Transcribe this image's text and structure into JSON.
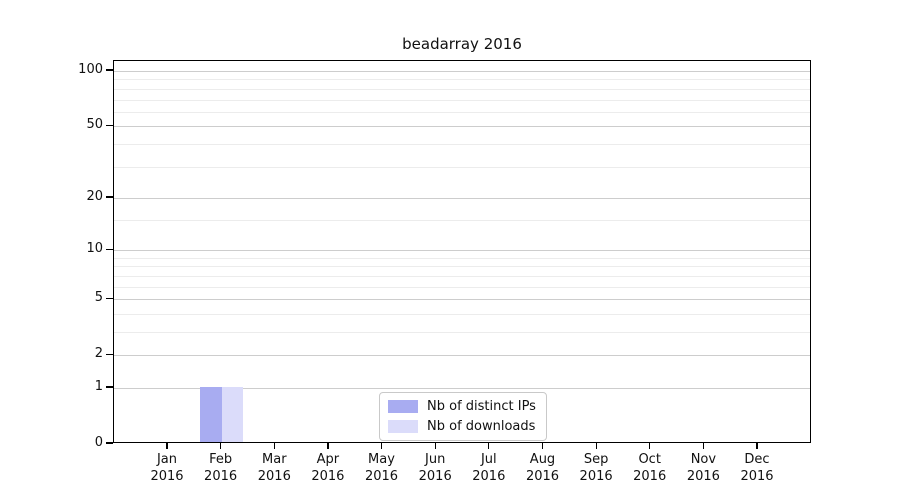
{
  "chart_data": {
    "type": "bar",
    "title": "beadarray 2016",
    "x_axis": {
      "categories": [
        "Jan",
        "Feb",
        "Mar",
        "Apr",
        "May",
        "Jun",
        "Jul",
        "Aug",
        "Sep",
        "Oct",
        "Nov",
        "Dec"
      ],
      "year_label": "2016"
    },
    "y_axis": {
      "scale": "log10(value+1)",
      "tick_labels": [
        100,
        50,
        20,
        10,
        5,
        2,
        1,
        0
      ],
      "minor_gridline_values": [
        3,
        4,
        6,
        7,
        8,
        9,
        15,
        30,
        40,
        60,
        70,
        80,
        90
      ],
      "range": [
        0,
        113
      ]
    },
    "series": [
      {
        "name": "Nb of distinct IPs",
        "color": "#a8acf1",
        "values": [
          0,
          1,
          0,
          0,
          0,
          0,
          0,
          0,
          0,
          0,
          0,
          0
        ]
      },
      {
        "name": "Nb of downloads",
        "color": "#dbdcfa",
        "values": [
          0,
          1,
          0,
          0,
          0,
          0,
          0,
          0,
          0,
          0,
          0,
          0
        ]
      }
    ],
    "legend_position": "lower-center",
    "grid": "horizontal",
    "colors": {
      "axis": "#000000",
      "major_grid": "#cdcdcd",
      "minor_grid": "#ececec",
      "background": "#ffffff"
    }
  }
}
